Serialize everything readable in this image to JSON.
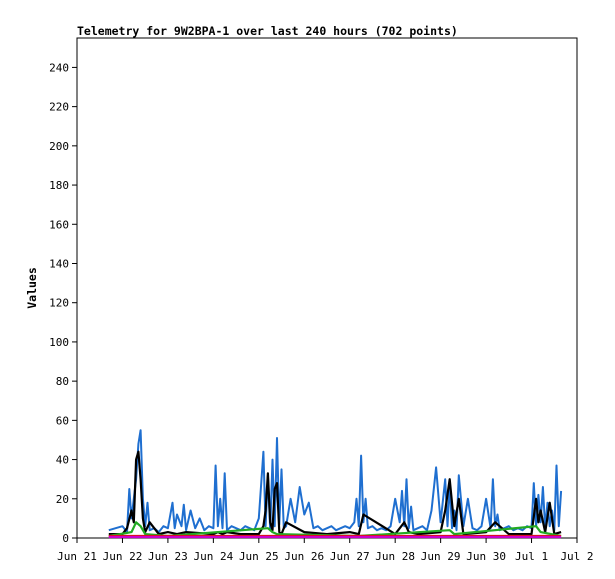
{
  "chart_data": {
    "type": "line",
    "title": "Telemetry for 9W2BPA-1 over last 240 hours (702 points)",
    "xlabel": "",
    "ylabel": "Values",
    "x_ticks": [
      "Jun 21",
      "Jun 22",
      "Jun 23",
      "Jun 24",
      "Jun 25",
      "Jun 26",
      "Jun 27",
      "Jun 28",
      "Jun 29",
      "Jun 30",
      "Jul 1",
      "Jul 2"
    ],
    "ylim": [
      0,
      255
    ],
    "y_ticks": [
      0,
      20,
      40,
      60,
      80,
      100,
      120,
      140,
      160,
      180,
      200,
      220,
      240
    ],
    "xlim_days": [
      0,
      11
    ],
    "grid": false,
    "colors": {
      "blue": "#1f6fd0",
      "black": "#000000",
      "green": "#22aa22",
      "red": "#dd1111",
      "magenta": "#cc00cc",
      "frame": "#000000"
    },
    "series": [
      {
        "color": "blue",
        "x": [
          0.7,
          0.85,
          1.0,
          1.1,
          1.15,
          1.2,
          1.25,
          1.3,
          1.35,
          1.4,
          1.45,
          1.5,
          1.55,
          1.6,
          1.7,
          1.8,
          1.9,
          2.0,
          2.1,
          2.15,
          2.2,
          2.3,
          2.35,
          2.4,
          2.5,
          2.6,
          2.7,
          2.8,
          2.9,
          3.0,
          3.05,
          3.1,
          3.15,
          3.2,
          3.25,
          3.3,
          3.4,
          3.5,
          3.6,
          3.7,
          3.8,
          3.9,
          4.0,
          4.1,
          4.15,
          4.2,
          4.25,
          4.3,
          4.35,
          4.4,
          4.45,
          4.5,
          4.55,
          4.6,
          4.7,
          4.8,
          4.9,
          5.0,
          5.1,
          5.2,
          5.3,
          5.4,
          5.5,
          5.6,
          5.7,
          5.8,
          5.9,
          6.0,
          6.1,
          6.15,
          6.2,
          6.25,
          6.3,
          6.35,
          6.4,
          6.5,
          6.6,
          6.7,
          6.8,
          6.9,
          7.0,
          7.1,
          7.15,
          7.2,
          7.25,
          7.3,
          7.35,
          7.4,
          7.5,
          7.6,
          7.7,
          7.8,
          7.9,
          8.0,
          8.1,
          8.15,
          8.2,
          8.25,
          8.3,
          8.35,
          8.4,
          8.5,
          8.6,
          8.7,
          8.8,
          8.9,
          9.0,
          9.1,
          9.15,
          9.2,
          9.25,
          9.3,
          9.4,
          9.5,
          9.6,
          9.7,
          9.8,
          9.9,
          10.0,
          10.05,
          10.1,
          10.15,
          10.2,
          10.25,
          10.3,
          10.35,
          10.4,
          10.45,
          10.5,
          10.55,
          10.6,
          10.65
        ],
        "y": [
          4,
          5,
          6,
          3,
          25,
          10,
          20,
          30,
          48,
          55,
          20,
          6,
          18,
          4,
          5,
          3,
          6,
          5,
          18,
          5,
          12,
          6,
          17,
          4,
          14,
          5,
          10,
          4,
          6,
          5,
          37,
          6,
          20,
          5,
          33,
          4,
          6,
          5,
          4,
          6,
          5,
          4,
          10,
          44,
          6,
          32,
          4,
          40,
          6,
          51,
          7,
          35,
          5,
          6,
          20,
          8,
          26,
          12,
          18,
          5,
          6,
          4,
          5,
          6,
          4,
          5,
          6,
          5,
          8,
          20,
          6,
          42,
          8,
          20,
          5,
          6,
          4,
          5,
          4,
          6,
          20,
          8,
          24,
          6,
          30,
          5,
          16,
          4,
          5,
          6,
          4,
          14,
          36,
          8,
          30,
          6,
          28,
          5,
          14,
          4,
          32,
          6,
          20,
          5,
          4,
          6,
          20,
          5,
          30,
          6,
          12,
          4,
          5,
          6,
          4,
          5,
          4,
          6,
          5,
          28,
          6,
          22,
          8,
          26,
          5,
          18,
          6,
          14,
          4,
          37,
          6,
          24
        ]
      },
      {
        "color": "black",
        "x": [
          0.7,
          1.0,
          1.1,
          1.2,
          1.25,
          1.3,
          1.35,
          1.4,
          1.45,
          1.5,
          1.6,
          1.8,
          2.0,
          2.2,
          2.4,
          3.0,
          3.1,
          3.2,
          3.3,
          3.6,
          4.0,
          4.1,
          4.15,
          4.2,
          4.25,
          4.3,
          4.35,
          4.4,
          4.45,
          4.5,
          4.6,
          5.0,
          5.5,
          6.0,
          6.2,
          6.3,
          7.0,
          7.2,
          7.3,
          7.5,
          8.0,
          8.1,
          8.2,
          8.3,
          8.4,
          8.5,
          9.0,
          9.2,
          9.5,
          10.0,
          10.1,
          10.15,
          10.2,
          10.3,
          10.4,
          10.5,
          10.65
        ],
        "y": [
          2,
          2,
          5,
          14,
          8,
          40,
          44,
          30,
          10,
          3,
          8,
          2,
          3,
          2,
          3,
          2,
          3,
          2,
          3,
          2,
          2,
          6,
          14,
          33,
          8,
          4,
          25,
          28,
          3,
          2,
          8,
          3,
          2,
          3,
          2,
          12,
          2,
          8,
          3,
          2,
          3,
          14,
          30,
          6,
          20,
          2,
          3,
          8,
          2,
          2,
          20,
          8,
          14,
          3,
          18,
          2,
          3
        ]
      },
      {
        "color": "green",
        "x": [
          0.7,
          1.2,
          1.3,
          1.4,
          1.5,
          2.0,
          4.2,
          4.3,
          4.4,
          6.2,
          8.2,
          8.3,
          10.1,
          10.2,
          10.65
        ],
        "y": [
          1,
          3,
          8,
          6,
          2,
          1,
          5,
          3,
          2,
          1,
          4,
          2,
          6,
          3,
          1
        ]
      },
      {
        "color": "red",
        "x": [
          0.7,
          2.0,
          4.0,
          6.0,
          8.0,
          10.0,
          10.65
        ],
        "y": [
          1,
          1,
          1,
          1,
          1,
          1,
          1
        ]
      },
      {
        "color": "magenta",
        "x": [
          0.7,
          3.0,
          6.0,
          9.0,
          10.65
        ],
        "y": [
          0.5,
          0.5,
          0.5,
          0.5,
          0.5
        ]
      }
    ]
  }
}
